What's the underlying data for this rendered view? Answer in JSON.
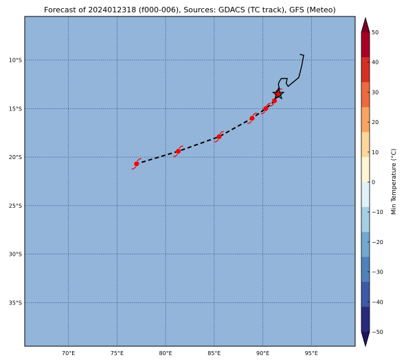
{
  "title": "Forecast of 2024012318 (f000-006), Sources: GDACS (TC track), GFS (Meteo)",
  "map": {
    "ocean_color": "#92b5d9",
    "grid_color": "#3c5a8c",
    "lon_range": [
      65.5,
      99.5
    ],
    "lat_range": [
      -39.5,
      -5.5
    ],
    "lon_ticks": [
      70,
      75,
      80,
      85,
      90,
      95
    ],
    "lat_ticks": [
      -10,
      -15,
      -20,
      -25,
      -30,
      -35
    ],
    "lon_tick_labels": [
      "70°E",
      "75°E",
      "80°E",
      "85°E",
      "90°E",
      "95°E"
    ],
    "lat_tick_labels": [
      "10°S",
      "15°S",
      "20°S",
      "25°S",
      "30°S",
      "35°S"
    ]
  },
  "track": {
    "line_color": "#000000",
    "marker_color": "#ff0000",
    "points": [
      {
        "lon": 91.5,
        "lat": -13.5
      },
      {
        "lon": 91.2,
        "lat": -14.2
      },
      {
        "lon": 90.3,
        "lat": -15.0
      },
      {
        "lon": 88.9,
        "lat": -16.0
      },
      {
        "lon": 85.5,
        "lat": -17.9
      },
      {
        "lon": 81.3,
        "lat": -19.4
      },
      {
        "lon": 77.0,
        "lat": -20.7
      }
    ],
    "current_position": {
      "lon": 91.6,
      "lat": -13.5
    }
  },
  "coastline": {
    "color": "#000000",
    "points": [
      {
        "lon": 93.8,
        "lat": -9.4
      },
      {
        "lon": 94.2,
        "lat": -9.5
      },
      {
        "lon": 94.0,
        "lat": -10.6
      },
      {
        "lon": 93.7,
        "lat": -11.8
      },
      {
        "lon": 92.6,
        "lat": -12.7
      },
      {
        "lon": 92.4,
        "lat": -12.4
      },
      {
        "lon": 92.5,
        "lat": -11.9
      },
      {
        "lon": 91.9,
        "lat": -11.9
      },
      {
        "lon": 91.7,
        "lat": -12.2
      },
      {
        "lon": 91.6,
        "lat": -12.5
      },
      {
        "lon": 91.7,
        "lat": -13.0
      },
      {
        "lon": 91.4,
        "lat": -13.2
      },
      {
        "lon": 91.9,
        "lat": -13.5
      },
      {
        "lon": 91.6,
        "lat": -13.8
      },
      {
        "lon": 91.2,
        "lat": -14.0
      }
    ]
  },
  "colorbar": {
    "label": "Min Temperature (°C)",
    "range": [
      -50,
      50
    ],
    "ticks": [
      50,
      40,
      30,
      20,
      10,
      0,
      -10,
      -20,
      -30,
      -40,
      -50
    ],
    "tick_labels": [
      "50",
      "40",
      "30",
      "20",
      "10",
      "0",
      "−10",
      "−20",
      "−30",
      "−40",
      "−50"
    ],
    "colors": [
      "#2a2a7c",
      "#3c5aa6",
      "#4f82bd",
      "#72a8d1",
      "#a6cfe4",
      "#e0f1f8",
      "#fff5d4",
      "#fdd69a",
      "#f9a461",
      "#ec6a3f",
      "#d43024",
      "#a80026"
    ],
    "extend_low_color": "#1c1460",
    "extend_high_color": "#7e0026"
  }
}
